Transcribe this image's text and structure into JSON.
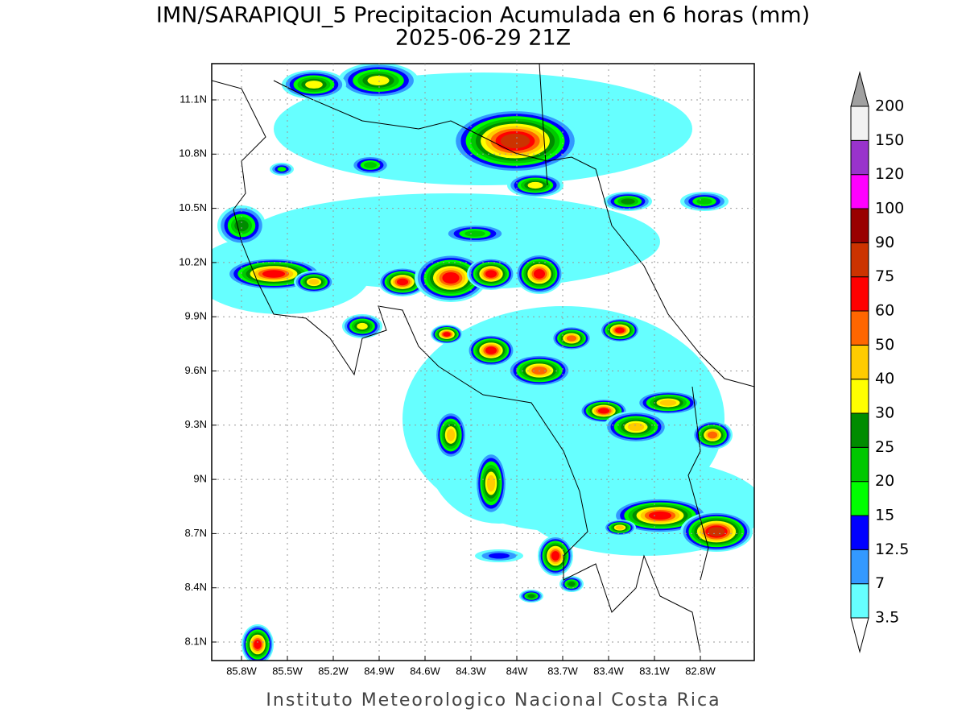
{
  "header": {
    "title": "IMN/SARAPIQUI_5 Precipitacion Acumulada en 6 horas (mm)",
    "subtitle": "2025-06-29 21Z"
  },
  "map": {
    "lat_ticks": [
      "11.1N",
      "10.8N",
      "10.5N",
      "10.2N",
      "9.9N",
      "9.6N",
      "9.3N",
      "9N",
      "8.7N",
      "8.4N",
      "8.1N"
    ],
    "lon_ticks": [
      "85.8W",
      "85.5W",
      "85.2W",
      "84.9W",
      "84.6W",
      "84.3W",
      "84W",
      "83.7W",
      "83.4W",
      "83.1W",
      "82.8W"
    ]
  },
  "colorbar": {
    "levels": [
      3.5,
      7,
      12.5,
      15,
      20,
      25,
      30,
      40,
      50,
      60,
      75,
      90,
      100,
      120,
      150,
      200
    ],
    "colors": [
      "#66ffff",
      "#3399ff",
      "#0000ff",
      "#00ff00",
      "#00c800",
      "#008c00",
      "#ffff00",
      "#ffcc00",
      "#ff6600",
      "#ff0000",
      "#cc3300",
      "#990000",
      "#ff00ff",
      "#9933cc",
      "#f2f2f2"
    ],
    "over_color": "#a0a0a0",
    "under_color": "#ffffff"
  },
  "footer": "Instituto Meteorologico Nacional Costa Rica"
}
